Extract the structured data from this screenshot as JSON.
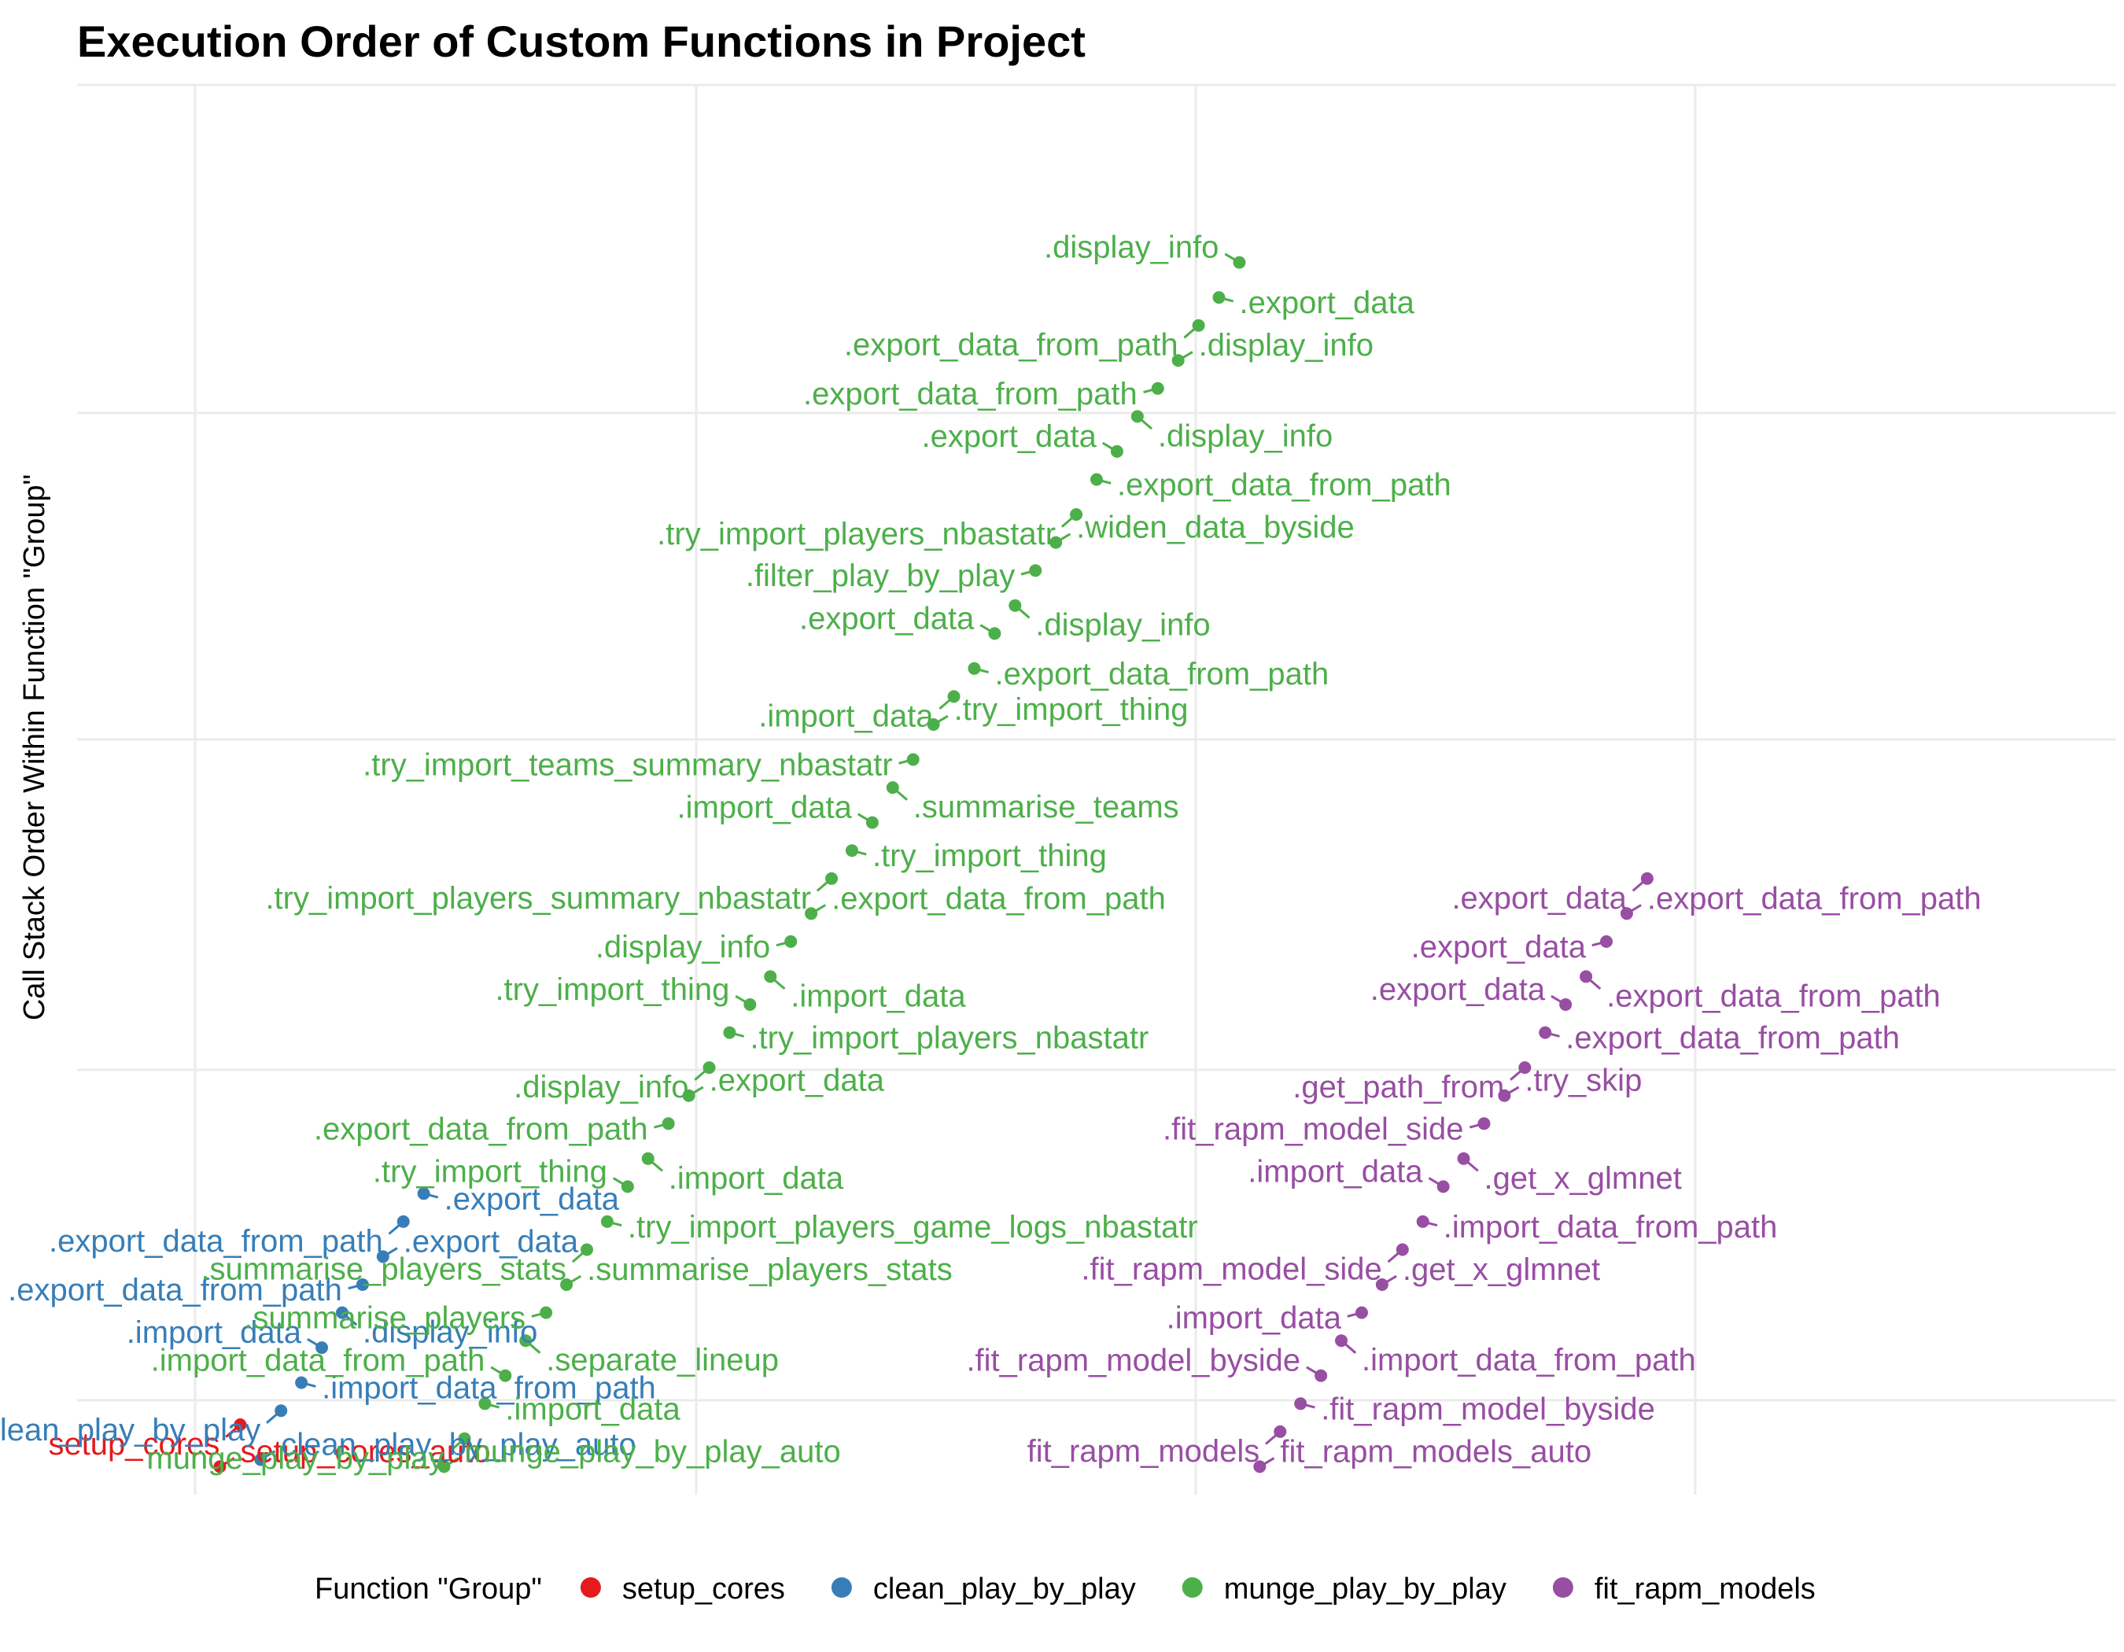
{
  "chart_data": {
    "type": "scatter",
    "title": "Execution Order of Custom Functions in Project",
    "xlabel": "",
    "ylabel": "Call Stack Order Within Function \"Group\"",
    "legend": {
      "title": "Function \"Group\"",
      "placement": "bottom"
    },
    "grid": true,
    "xlim": [
      0,
      100
    ],
    "ylim": [
      0,
      100
    ],
    "series": [
      {
        "name": "setup_cores",
        "color": "#E41A1C",
        "points": [
          {
            "x": 7,
            "y": 2,
            "label": "setup_cores_auto"
          },
          {
            "x": 8,
            "y": 5,
            "label": "setup_cores"
          }
        ]
      },
      {
        "name": "clean_play_by_play",
        "color": "#377EB8",
        "points": [
          {
            "x": 9,
            "y": 2.5,
            "label": "clean_play_by_play_auto"
          },
          {
            "x": 10,
            "y": 6,
            "label": "clean_play_by_play"
          },
          {
            "x": 11,
            "y": 8,
            "label": ".import_data_from_path"
          },
          {
            "x": 12,
            "y": 10.5,
            "label": ".import_data"
          },
          {
            "x": 13,
            "y": 13,
            "label": ".display_info"
          },
          {
            "x": 14,
            "y": 15,
            "label": ".export_data_from_path"
          },
          {
            "x": 15,
            "y": 17,
            "label": ".export_data"
          },
          {
            "x": 16,
            "y": 19.5,
            "label": ".export_data_from_path"
          },
          {
            "x": 17,
            "y": 21.5,
            "label": ".export_data"
          }
        ]
      },
      {
        "name": "munge_play_by_play",
        "color": "#4DAF4A",
        "points": [
          {
            "x": 18,
            "y": 2,
            "label": "munge_play_by_play_auto"
          },
          {
            "x": 19,
            "y": 4,
            "label": "munge_play_by_play"
          },
          {
            "x": 20,
            "y": 6.5,
            "label": ".import_data"
          },
          {
            "x": 21,
            "y": 8.5,
            "label": ".import_data_from_path"
          },
          {
            "x": 22,
            "y": 11,
            "label": ".separate_lineup"
          },
          {
            "x": 23,
            "y": 13,
            "label": ".summarise_players"
          },
          {
            "x": 24,
            "y": 15,
            "label": ".summarise_players_stats"
          },
          {
            "x": 25,
            "y": 17.5,
            "label": ".summarise_players_stats"
          },
          {
            "x": 26,
            "y": 19.5,
            "label": ".try_import_players_game_logs_nbastatr"
          },
          {
            "x": 27,
            "y": 22,
            "label": ".try_import_thing"
          },
          {
            "x": 28,
            "y": 24,
            "label": ".import_data"
          },
          {
            "x": 29,
            "y": 26.5,
            "label": ".export_data_from_path"
          },
          {
            "x": 30,
            "y": 28.5,
            "label": ".export_data"
          },
          {
            "x": 31,
            "y": 30.5,
            "label": ".display_info"
          },
          {
            "x": 32,
            "y": 33,
            "label": ".try_import_players_nbastatr"
          },
          {
            "x": 33,
            "y": 35,
            "label": ".try_import_thing"
          },
          {
            "x": 34,
            "y": 37,
            "label": ".import_data"
          },
          {
            "x": 35,
            "y": 39.5,
            "label": ".display_info"
          },
          {
            "x": 36,
            "y": 41.5,
            "label": ".export_data_from_path"
          },
          {
            "x": 37,
            "y": 44,
            "label": ".try_import_players_summary_nbastatr"
          },
          {
            "x": 38,
            "y": 46,
            "label": ".try_import_thing"
          },
          {
            "x": 39,
            "y": 48,
            "label": ".import_data"
          },
          {
            "x": 40,
            "y": 50.5,
            "label": ".summarise_teams"
          },
          {
            "x": 41,
            "y": 52.5,
            "label": ".try_import_teams_summary_nbastatr"
          },
          {
            "x": 42,
            "y": 55,
            "label": ".try_import_thing"
          },
          {
            "x": 43,
            "y": 57,
            "label": ".import_data"
          },
          {
            "x": 44,
            "y": 59,
            "label": ".export_data_from_path"
          },
          {
            "x": 45,
            "y": 61.5,
            "label": ".export_data"
          },
          {
            "x": 46,
            "y": 63.5,
            "label": ".display_info"
          },
          {
            "x": 47,
            "y": 66,
            "label": ".filter_play_by_play"
          },
          {
            "x": 48,
            "y": 68,
            "label": ".widen_data_byside"
          },
          {
            "x": 49,
            "y": 70,
            "label": ".try_import_players_nbastatr"
          },
          {
            "x": 50,
            "y": 72.5,
            "label": ".export_data_from_path"
          },
          {
            "x": 51,
            "y": 74.5,
            "label": ".export_data"
          },
          {
            "x": 52,
            "y": 77,
            "label": ".display_info"
          },
          {
            "x": 53,
            "y": 79,
            "label": ".export_data_from_path"
          },
          {
            "x": 54,
            "y": 81,
            "label": ".display_info"
          },
          {
            "x": 55,
            "y": 83.5,
            "label": ".export_data_from_path"
          },
          {
            "x": 56,
            "y": 85.5,
            "label": ".export_data"
          },
          {
            "x": 57,
            "y": 88,
            "label": ".display_info"
          }
        ]
      },
      {
        "name": "fit_rapm_models",
        "color": "#984EA3",
        "points": [
          {
            "x": 58,
            "y": 2,
            "label": "fit_rapm_models_auto"
          },
          {
            "x": 59,
            "y": 4.5,
            "label": "fit_rapm_models"
          },
          {
            "x": 60,
            "y": 6.5,
            "label": ".fit_rapm_model_byside"
          },
          {
            "x": 61,
            "y": 8.5,
            "label": ".fit_rapm_model_byside"
          },
          {
            "x": 62,
            "y": 11,
            "label": ".import_data_from_path"
          },
          {
            "x": 63,
            "y": 13,
            "label": ".import_data"
          },
          {
            "x": 64,
            "y": 15,
            "label": ".get_x_glmnet"
          },
          {
            "x": 65,
            "y": 17.5,
            "label": ".fit_rapm_model_side"
          },
          {
            "x": 66,
            "y": 19.5,
            "label": ".import_data_from_path"
          },
          {
            "x": 67,
            "y": 22,
            "label": ".import_data"
          },
          {
            "x": 68,
            "y": 24,
            "label": ".get_x_glmnet"
          },
          {
            "x": 69,
            "y": 26.5,
            "label": ".fit_rapm_model_side"
          },
          {
            "x": 70,
            "y": 28.5,
            "label": ".try_skip"
          },
          {
            "x": 71,
            "y": 30.5,
            "label": ".get_path_from"
          },
          {
            "x": 72,
            "y": 33,
            "label": ".export_data_from_path"
          },
          {
            "x": 73,
            "y": 35,
            "label": ".export_data"
          },
          {
            "x": 74,
            "y": 37,
            "label": ".export_data_from_path"
          },
          {
            "x": 75,
            "y": 39.5,
            "label": ".export_data"
          },
          {
            "x": 76,
            "y": 41.5,
            "label": ".export_data_from_path"
          },
          {
            "x": 77,
            "y": 44,
            "label": ".export_data"
          }
        ]
      }
    ]
  }
}
